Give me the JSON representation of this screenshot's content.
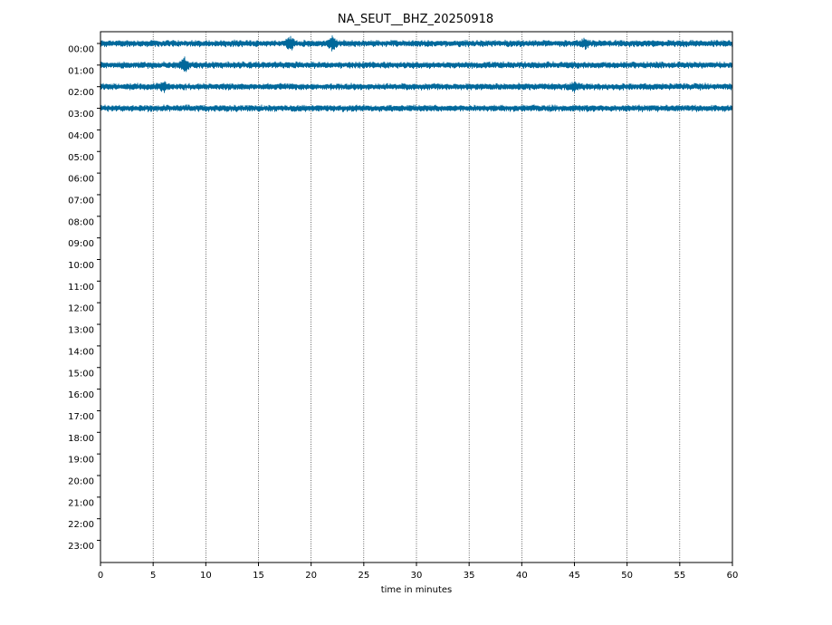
{
  "chart_data": {
    "type": "line",
    "title": "NA_SEUT__BHZ_20250918",
    "xlabel": "time in minutes",
    "ylabel": "",
    "xlim": [
      0,
      60
    ],
    "x_ticks": [
      0,
      5,
      10,
      15,
      20,
      25,
      30,
      35,
      40,
      45,
      50,
      55,
      60
    ],
    "y_tick_labels": [
      "00:00",
      "01:00",
      "02:00",
      "03:00",
      "04:00",
      "05:00",
      "06:00",
      "07:00",
      "08:00",
      "09:00",
      "10:00",
      "11:00",
      "12:00",
      "13:00",
      "14:00",
      "15:00",
      "16:00",
      "17:00",
      "18:00",
      "19:00",
      "20:00",
      "21:00",
      "22:00",
      "23:00"
    ],
    "grid": "vertical dotted lines at x ticks",
    "trace_color": "#00689b",
    "series": [
      {
        "row": "00:00",
        "start_minute": 0,
        "end_minute": 60,
        "events": [
          {
            "minute": 18,
            "amplitude": "high"
          },
          {
            "minute": 22,
            "amplitude": "high"
          },
          {
            "minute": 46,
            "amplitude": "medium"
          }
        ]
      },
      {
        "row": "01:00",
        "start_minute": 0,
        "end_minute": 60,
        "events": [
          {
            "minute": 8,
            "amplitude": "high"
          }
        ]
      },
      {
        "row": "02:00",
        "start_minute": 0,
        "end_minute": 60,
        "events": [
          {
            "minute": 6,
            "amplitude": "medium"
          },
          {
            "minute": 45,
            "amplitude": "medium"
          }
        ]
      },
      {
        "row": "03:00",
        "start_minute": 0,
        "end_minute": 60,
        "events": []
      }
    ]
  }
}
